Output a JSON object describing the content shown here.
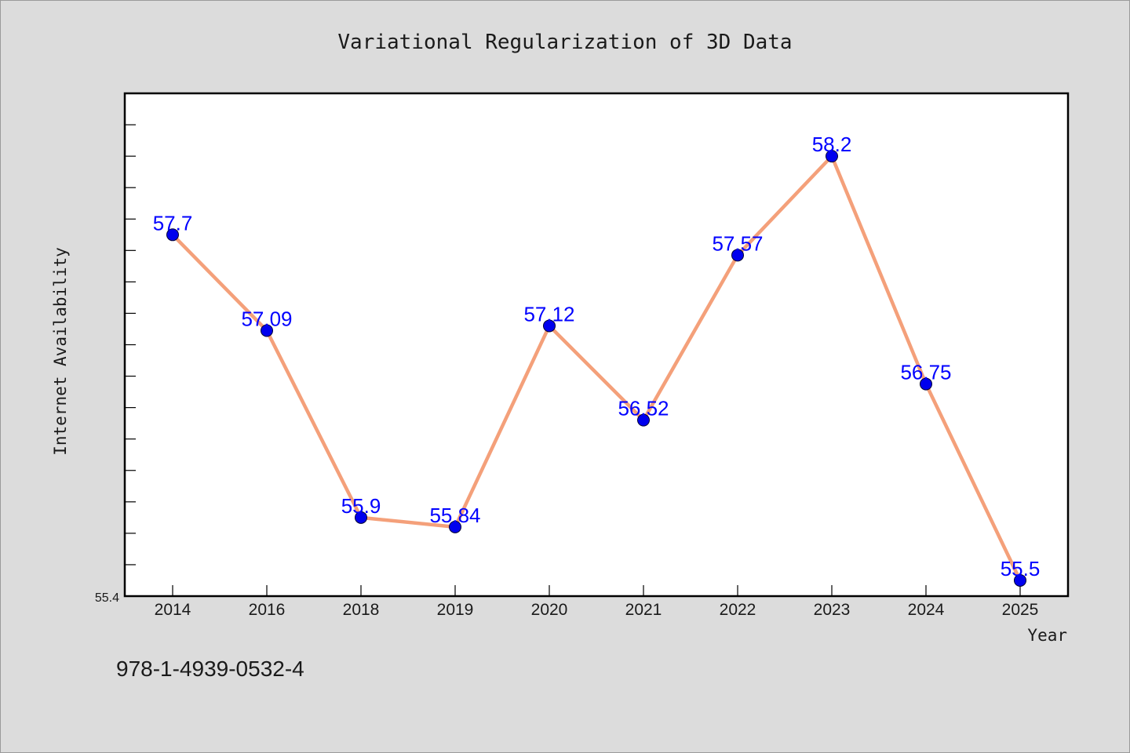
{
  "chart_data": {
    "type": "line",
    "title": "Variational Regularization of 3D Data",
    "xlabel": "Year",
    "ylabel": "Internet Availability",
    "categories": [
      "2014",
      "2016",
      "2018",
      "2019",
      "2020",
      "2021",
      "2022",
      "2023",
      "2024",
      "2025"
    ],
    "series": [
      {
        "values": [
          57.7,
          57.09,
          55.9,
          55.84,
          57.12,
          56.52,
          57.57,
          58.2,
          56.75,
          55.5
        ],
        "labels": [
          "57.7",
          "57.09",
          "55.9",
          "55.84",
          "57.12",
          "56.52",
          "57.57",
          "58.2",
          "56.75",
          "55.5"
        ],
        "line_color": "#f4a07a",
        "marker_color": "#0000ee"
      }
    ],
    "ylim": [
      55.4,
      58.6
    ],
    "yticks_labeled": [
      "55.4"
    ],
    "grid": false,
    "legend": "none"
  },
  "footer_text": "978-1-4939-0532-4",
  "colors": {
    "background": "#dcdcdc",
    "plot_background": "#ffffff",
    "data_label": "#0000ff"
  }
}
